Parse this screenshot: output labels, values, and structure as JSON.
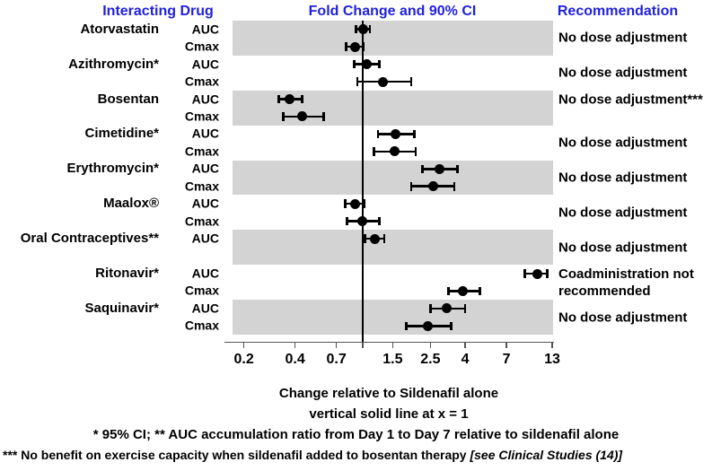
{
  "header": {
    "col_drug": "Interacting Drug",
    "col_plot": "Fold Change and 90% CI",
    "col_rec": "Recommendation"
  },
  "colors": {
    "header_blue": "#2121DE",
    "band_gray": "#D3D3D3",
    "axis_gray": "#555555",
    "marker_black": "#000000"
  },
  "chart_data": {
    "type": "scatter",
    "subtype": "forest-plot",
    "x_scale": "log10",
    "x_range": [
      0.2,
      13
    ],
    "x_ticks": [
      0.2,
      0.4,
      0.7,
      1,
      1.5,
      2.5,
      4,
      7,
      13
    ],
    "x_tick_labels": [
      "0.2",
      "0.4",
      "0.7",
      "",
      "1.5",
      "2.5",
      "4",
      "7",
      "13"
    ],
    "reference_line_x": 1,
    "xlabel": "Change relative to Sildenafil alone",
    "xlabel2": "vertical solid line at x = 1",
    "drugs": [
      {
        "name": "Atorvastatin",
        "band": "gray",
        "recommendation": "No dose adjustment",
        "rows": [
          {
            "metric": "AUC",
            "lo": 0.91,
            "mid": 1.0,
            "hi": 1.1
          },
          {
            "metric": "Cmax",
            "lo": 0.8,
            "mid": 0.9,
            "hi": 1.01
          }
        ]
      },
      {
        "name": "Azithromycin*",
        "band": "white",
        "recommendation": "No dose adjustment",
        "rows": [
          {
            "metric": "AUC",
            "lo": 0.89,
            "mid": 1.06,
            "hi": 1.25
          },
          {
            "metric": "Cmax",
            "lo": 0.93,
            "mid": 1.32,
            "hi": 1.93
          }
        ]
      },
      {
        "name": "Bosentan",
        "band": "gray",
        "recommendation": "No dose adjustment***",
        "rec_align": "row1",
        "rows": [
          {
            "metric": "AUC",
            "lo": 0.32,
            "mid": 0.37,
            "hi": 0.44
          },
          {
            "metric": "Cmax",
            "lo": 0.34,
            "mid": 0.44,
            "hi": 0.59
          }
        ]
      },
      {
        "name": "Cimetidine*",
        "band": "white",
        "recommendation": "No dose adjustment",
        "rows": [
          {
            "metric": "AUC",
            "lo": 1.23,
            "mid": 1.56,
            "hi": 2.01
          },
          {
            "metric": "Cmax",
            "lo": 1.16,
            "mid": 1.54,
            "hi": 2.05
          }
        ]
      },
      {
        "name": "Erythromycin*",
        "band": "gray",
        "recommendation": "No dose adjustment",
        "rows": [
          {
            "metric": "AUC",
            "lo": 2.24,
            "mid": 2.82,
            "hi": 3.6
          },
          {
            "metric": "Cmax",
            "lo": 1.93,
            "mid": 2.6,
            "hi": 3.45
          }
        ]
      },
      {
        "name": "Maalox®",
        "band": "white",
        "recommendation": "No dose adjustment",
        "rows": [
          {
            "metric": "AUC",
            "lo": 0.79,
            "mid": 0.9,
            "hi": 1.02
          },
          {
            "metric": "Cmax",
            "lo": 0.81,
            "mid": 0.99,
            "hi": 1.25
          }
        ]
      },
      {
        "name": "Oral Contraceptives**",
        "band": "gray",
        "recommendation": "No dose adjustment",
        "rows": [
          {
            "metric": "AUC",
            "lo": 1.03,
            "mid": 1.18,
            "hi": 1.34
          }
        ]
      },
      {
        "name": "Ritonavir*",
        "band": "white",
        "recommendation": "Coadministration not\nrecommended",
        "rows": [
          {
            "metric": "AUC",
            "lo": 9.0,
            "mid": 10.6,
            "hi": 12.2
          },
          {
            "metric": "Cmax",
            "lo": 3.2,
            "mid": 3.9,
            "hi": 4.9
          }
        ]
      },
      {
        "name": "Saquinavir*",
        "band": "gray",
        "recommendation": "No dose adjustment",
        "rows": [
          {
            "metric": "AUC",
            "lo": 2.5,
            "mid": 3.1,
            "hi": 4.0
          },
          {
            "metric": "Cmax",
            "lo": 1.8,
            "mid": 2.4,
            "hi": 3.3
          }
        ]
      }
    ]
  },
  "footnotes": {
    "line1": "* 95% CI;  ** AUC accumulation ratio from Day 1 to Day 7 relative to sildenafil alone",
    "line2_main": "*** No benefit on exercise capacity when sildenafil added to bosentan therapy ",
    "line2_italic": "[see Clinical Studies (14)]"
  }
}
